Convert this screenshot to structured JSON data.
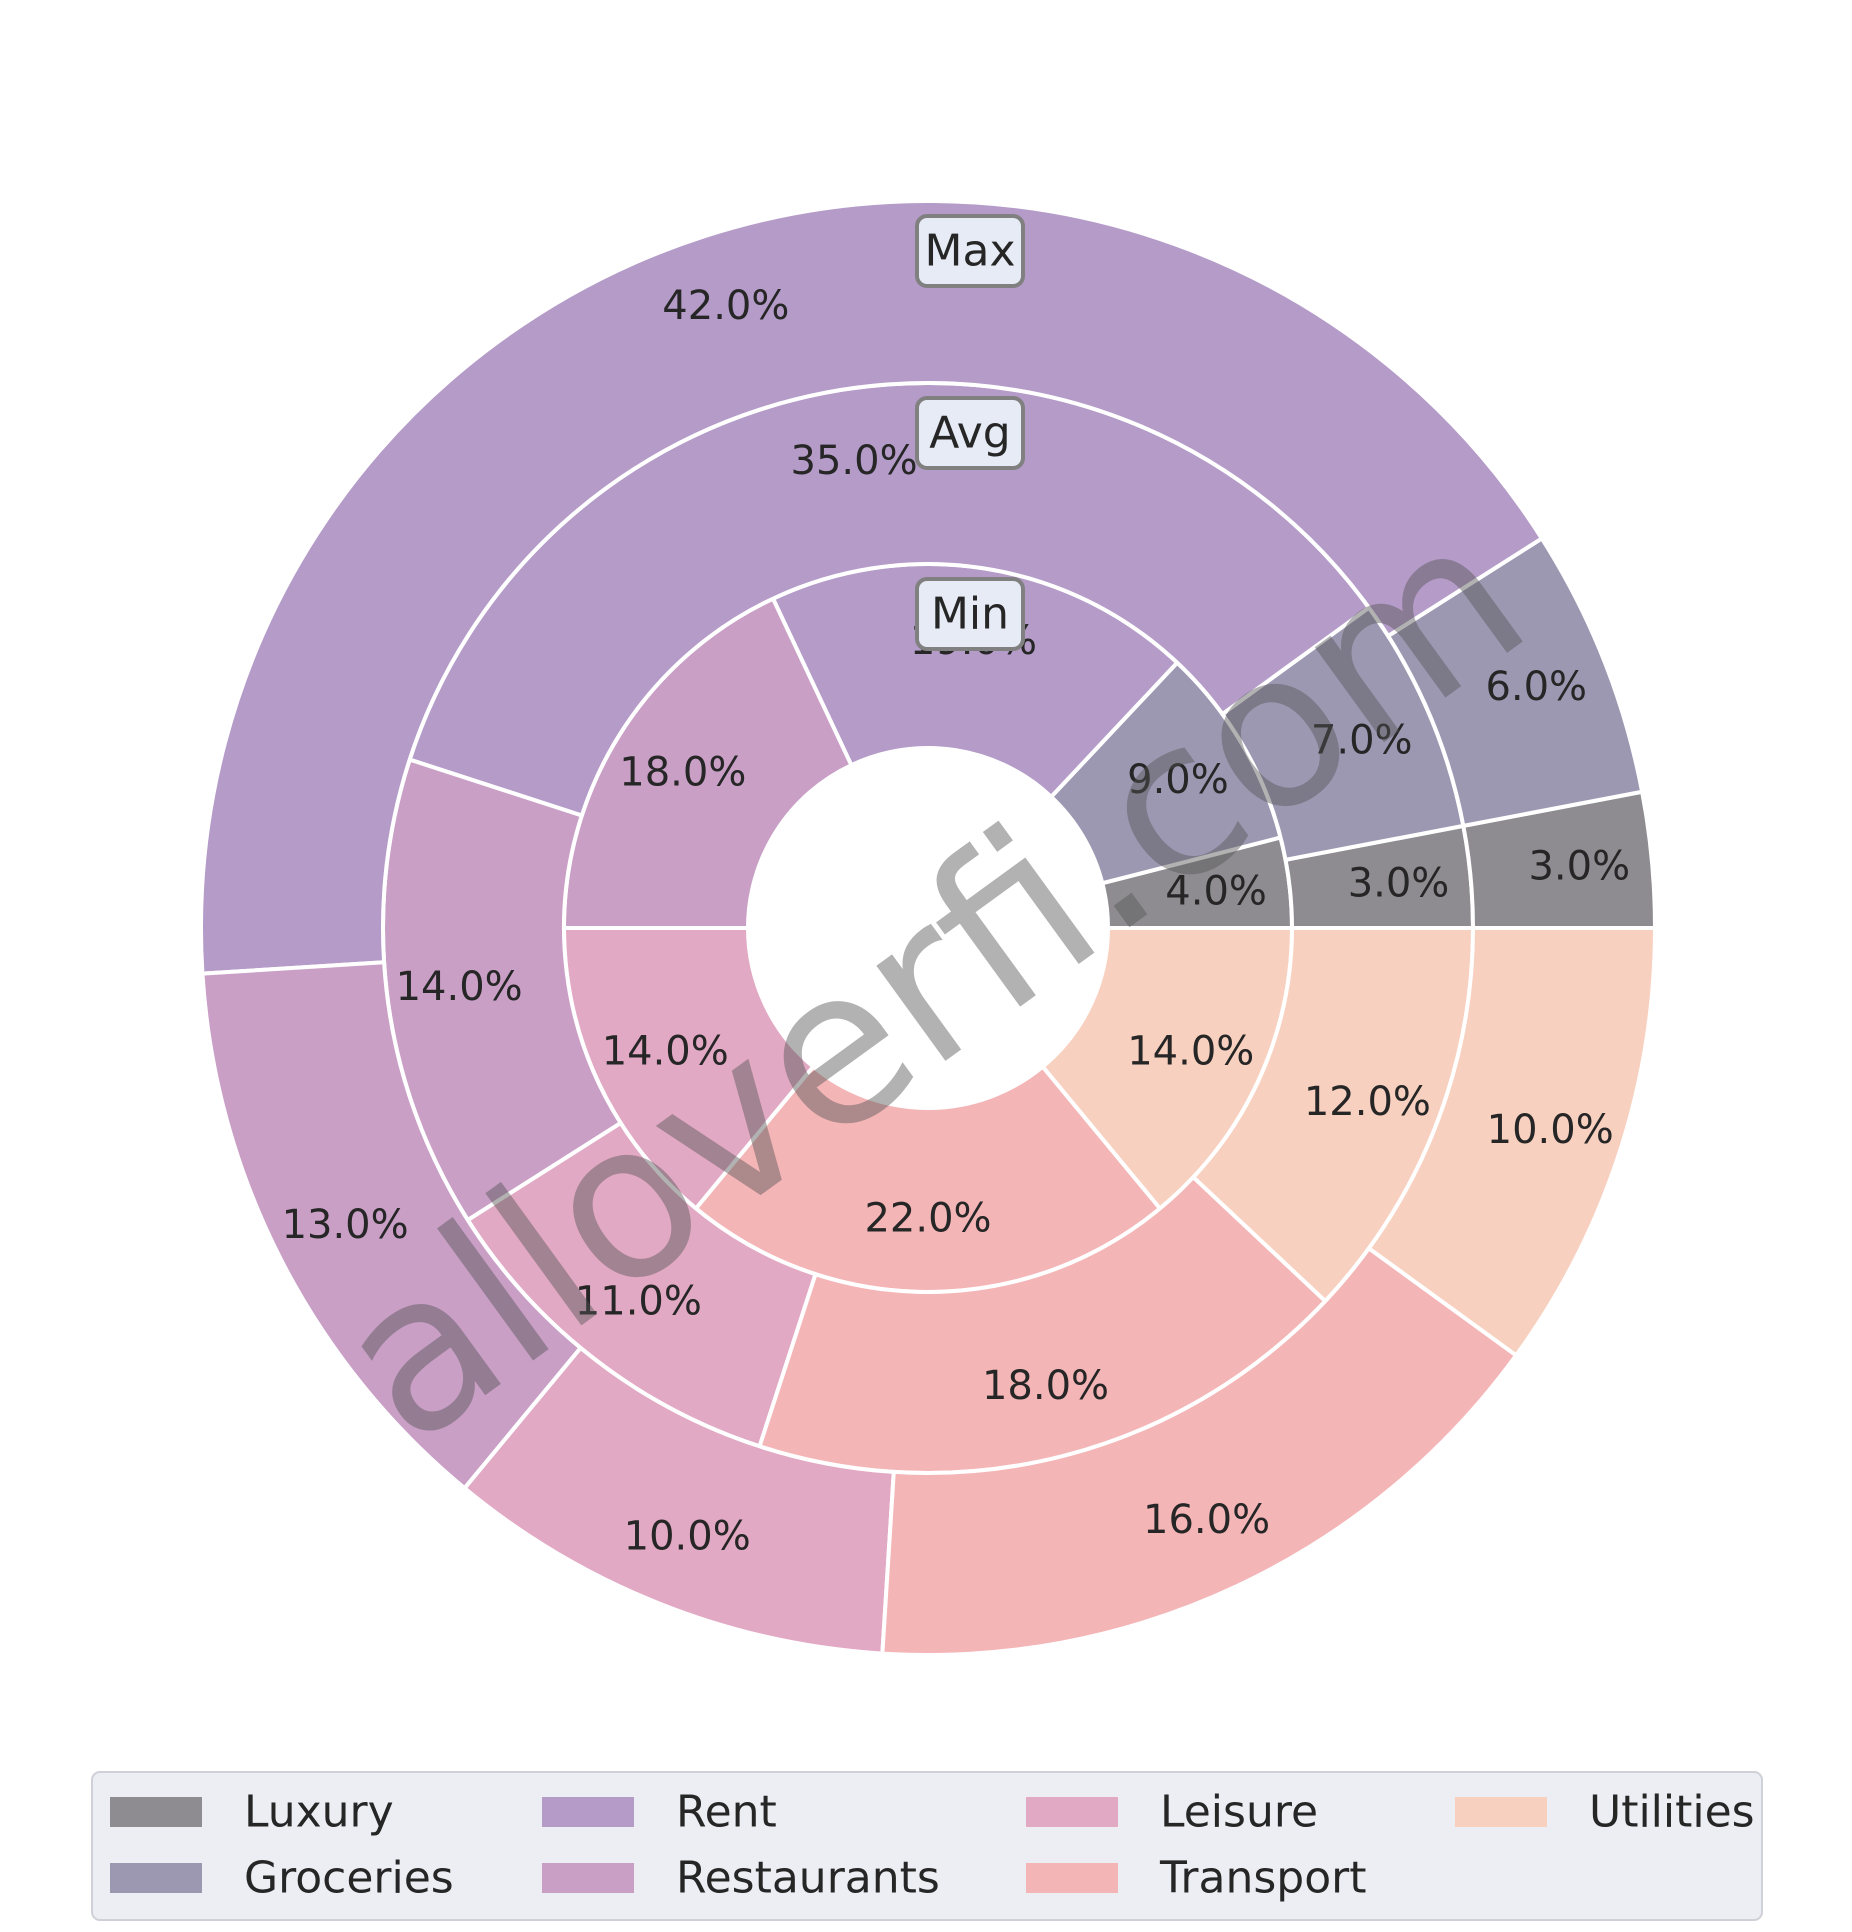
{
  "chart_data": {
    "type": "pie",
    "variant": "nested-donut",
    "categories": [
      "Luxury",
      "Groceries",
      "Rent",
      "Restaurants",
      "Leisure",
      "Transport",
      "Utilities"
    ],
    "colors": [
      "#8e8c91",
      "#9d98b2",
      "#b49bc8",
      "#c99fc6",
      "#e2a9c4",
      "#f4b5b7",
      "#f8d0bf"
    ],
    "rings": [
      {
        "name": "Min",
        "values": [
          4,
          9,
          19,
          18,
          14,
          22,
          14
        ],
        "labels": [
          "4.0%",
          "9.0%",
          "19.0%",
          "18.0%",
          "14.0%",
          "22.0%",
          "14.0%"
        ]
      },
      {
        "name": "Avg",
        "values": [
          3,
          7,
          35,
          14,
          11,
          18,
          12
        ],
        "labels": [
          "3.0%",
          "7.0%",
          "35.0%",
          "14.0%",
          "11.0%",
          "18.0%",
          "12.0%"
        ]
      },
      {
        "name": "Max",
        "values": [
          3,
          6,
          42,
          13,
          10,
          16,
          10
        ],
        "labels": [
          "3.0%",
          "6.0%",
          "42.0%",
          "13.0%",
          "10.0%",
          "16.0%",
          "10.0%"
        ]
      }
    ],
    "start_angle_deg": 0,
    "direction": "counterclockwise",
    "legend": {
      "placement": "bottom",
      "columns": 4
    },
    "watermark": "alloverfi.com"
  }
}
